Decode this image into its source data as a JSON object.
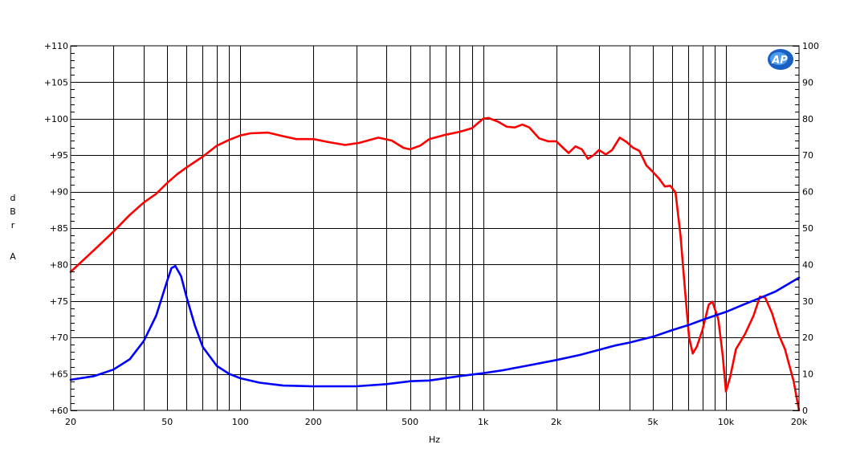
{
  "chart_data": {
    "type": "line",
    "title": "",
    "xlabel": "Hz",
    "ylabel_left": [
      "d",
      "B",
      "r",
      "A"
    ],
    "x_scale": "log",
    "xlim": [
      20,
      20000
    ],
    "ylim_left": [
      60,
      110
    ],
    "ylim_right": [
      0,
      100
    ],
    "grid": true,
    "legend": "none",
    "logo": "AP",
    "x_ticks": [
      {
        "value": 20,
        "label": "20"
      },
      {
        "value": 50,
        "label": "50"
      },
      {
        "value": 100,
        "label": "100"
      },
      {
        "value": 200,
        "label": "200"
      },
      {
        "value": 500,
        "label": "500"
      },
      {
        "value": 1000,
        "label": "1k"
      },
      {
        "value": 2000,
        "label": "2k"
      },
      {
        "value": 5000,
        "label": "5k"
      },
      {
        "value": 10000,
        "label": "10k"
      },
      {
        "value": 20000,
        "label": "20k"
      }
    ],
    "y_ticks_left": [
      {
        "value": 60,
        "label": "+60"
      },
      {
        "value": 65,
        "label": "+65"
      },
      {
        "value": 70,
        "label": "+70"
      },
      {
        "value": 75,
        "label": "+75"
      },
      {
        "value": 80,
        "label": "+80"
      },
      {
        "value": 85,
        "label": "+85"
      },
      {
        "value": 90,
        "label": "+90"
      },
      {
        "value": 95,
        "label": "+95"
      },
      {
        "value": 100,
        "label": "+100"
      },
      {
        "value": 105,
        "label": "+105"
      },
      {
        "value": 110,
        "label": "+110"
      }
    ],
    "y_ticks_right": [
      {
        "value": 0,
        "label": "0"
      },
      {
        "value": 10,
        "label": "10"
      },
      {
        "value": 20,
        "label": "20"
      },
      {
        "value": 30,
        "label": "30"
      },
      {
        "value": 40,
        "label": "40"
      },
      {
        "value": 50,
        "label": "50"
      },
      {
        "value": 60,
        "label": "60"
      },
      {
        "value": 70,
        "label": "70"
      },
      {
        "value": 80,
        "label": "80"
      },
      {
        "value": 90,
        "label": "90"
      },
      {
        "value": 100,
        "label": "100"
      }
    ],
    "series": [
      {
        "axis": "left",
        "color": "#ff0000",
        "points": [
          [
            20,
            79
          ],
          [
            25,
            82
          ],
          [
            30,
            84.5
          ],
          [
            35,
            86.8
          ],
          [
            40,
            88.5
          ],
          [
            45,
            89.7
          ],
          [
            50,
            91.2
          ],
          [
            55,
            92.4
          ],
          [
            60,
            93.3
          ],
          [
            70,
            94.8
          ],
          [
            80,
            96.3
          ],
          [
            90,
            97.1
          ],
          [
            100,
            97.7
          ],
          [
            110,
            98.0
          ],
          [
            130,
            98.1
          ],
          [
            150,
            97.6
          ],
          [
            170,
            97.2
          ],
          [
            200,
            97.2
          ],
          [
            230,
            96.8
          ],
          [
            270,
            96.4
          ],
          [
            310,
            96.7
          ],
          [
            370,
            97.4
          ],
          [
            420,
            97.0
          ],
          [
            470,
            96.0
          ],
          [
            500,
            95.8
          ],
          [
            550,
            96.3
          ],
          [
            600,
            97.2
          ],
          [
            700,
            97.8
          ],
          [
            800,
            98.2
          ],
          [
            900,
            98.7
          ],
          [
            1000,
            100.0
          ],
          [
            1050,
            100.1
          ],
          [
            1150,
            99.6
          ],
          [
            1250,
            98.9
          ],
          [
            1350,
            98.8
          ],
          [
            1450,
            99.2
          ],
          [
            1550,
            98.8
          ],
          [
            1700,
            97.3
          ],
          [
            1850,
            96.9
          ],
          [
            2000,
            96.9
          ],
          [
            2150,
            95.9
          ],
          [
            2250,
            95.3
          ],
          [
            2400,
            96.2
          ],
          [
            2550,
            95.8
          ],
          [
            2700,
            94.5
          ],
          [
            2850,
            95.0
          ],
          [
            3000,
            95.7
          ],
          [
            3200,
            95.1
          ],
          [
            3400,
            95.7
          ],
          [
            3650,
            97.4
          ],
          [
            3900,
            96.8
          ],
          [
            4150,
            96.0
          ],
          [
            4400,
            95.6
          ],
          [
            4700,
            93.6
          ],
          [
            5000,
            92.7
          ],
          [
            5300,
            91.8
          ],
          [
            5600,
            90.7
          ],
          [
            5900,
            90.8
          ],
          [
            6200,
            89.9
          ],
          [
            6500,
            84.0
          ],
          [
            6800,
            76.0
          ],
          [
            7050,
            70.0
          ],
          [
            7300,
            67.8
          ],
          [
            7600,
            68.8
          ],
          [
            8000,
            71.0
          ],
          [
            8500,
            74.5
          ],
          [
            8800,
            74.9
          ],
          [
            9300,
            72.5
          ],
          [
            9700,
            67.5
          ],
          [
            10000,
            62.6
          ],
          [
            10400,
            64.5
          ],
          [
            11000,
            68.4
          ],
          [
            12000,
            70.5
          ],
          [
            13000,
            73.0
          ],
          [
            13800,
            75.6
          ],
          [
            14500,
            75.5
          ],
          [
            15500,
            73.3
          ],
          [
            16500,
            70.4
          ],
          [
            17500,
            68.4
          ],
          [
            19000,
            64.0
          ],
          [
            20000,
            60.0
          ]
        ]
      },
      {
        "axis": "left",
        "color": "#0000ff",
        "points": [
          [
            20,
            64.2
          ],
          [
            25,
            64.7
          ],
          [
            30,
            65.6
          ],
          [
            35,
            67.0
          ],
          [
            40,
            69.5
          ],
          [
            45,
            73.0
          ],
          [
            50,
            77.8
          ],
          [
            52,
            79.5
          ],
          [
            54,
            79.8
          ],
          [
            57,
            78.4
          ],
          [
            60,
            75.6
          ],
          [
            65,
            71.6
          ],
          [
            70,
            68.7
          ],
          [
            80,
            66.1
          ],
          [
            90,
            65.0
          ],
          [
            100,
            64.4
          ],
          [
            120,
            63.8
          ],
          [
            150,
            63.4
          ],
          [
            200,
            63.3
          ],
          [
            300,
            63.3
          ],
          [
            400,
            63.6
          ],
          [
            500,
            64.0
          ],
          [
            600,
            64.1
          ],
          [
            800,
            64.7
          ],
          [
            1000,
            65.1
          ],
          [
            1200,
            65.5
          ],
          [
            1500,
            66.1
          ],
          [
            2000,
            66.9
          ],
          [
            2500,
            67.6
          ],
          [
            3000,
            68.3
          ],
          [
            3500,
            68.9
          ],
          [
            4000,
            69.3
          ],
          [
            5000,
            70.1
          ],
          [
            6000,
            71.0
          ],
          [
            7000,
            71.7
          ],
          [
            8000,
            72.4
          ],
          [
            9000,
            73.0
          ],
          [
            10000,
            73.5
          ],
          [
            12000,
            74.6
          ],
          [
            14000,
            75.5
          ],
          [
            16000,
            76.3
          ],
          [
            18000,
            77.3
          ],
          [
            20000,
            78.2
          ]
        ]
      }
    ]
  }
}
